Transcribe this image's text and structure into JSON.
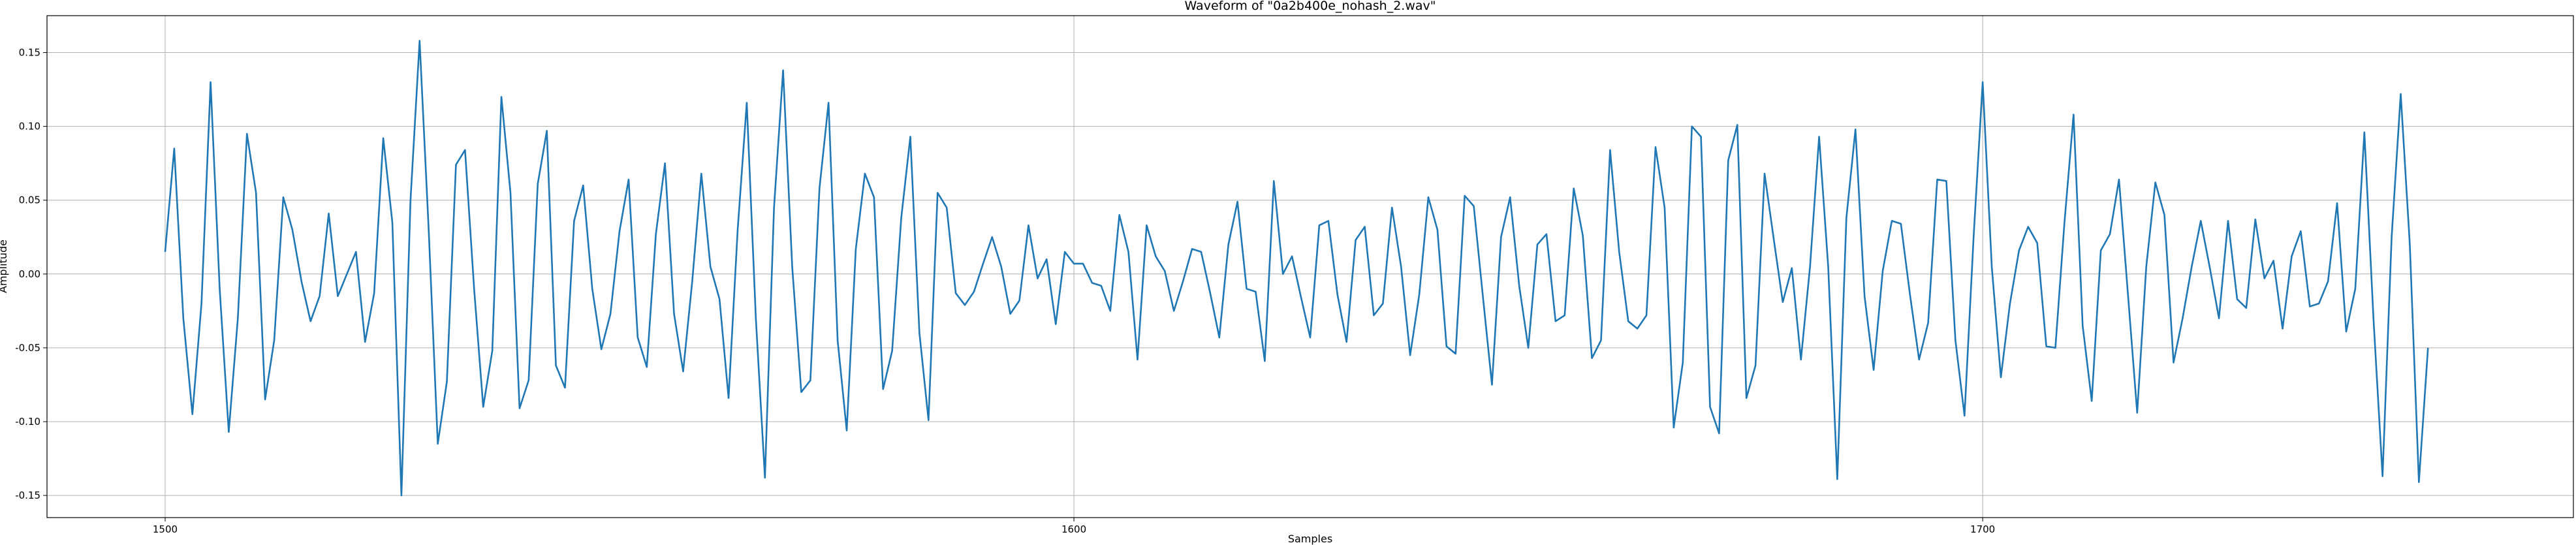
{
  "chart_data": {
    "type": "line",
    "title": "Waveform of \"0a2b400e_nohash_2.wav\"",
    "xlabel": "Samples",
    "ylabel": "Amplitude",
    "xlim": [
      1487,
      1765
    ],
    "ylim": [
      -0.165,
      0.175
    ],
    "xticks": [
      1500,
      1600,
      1700
    ],
    "yticks": [
      -0.15,
      -0.1,
      -0.05,
      0.0,
      0.05,
      0.1,
      0.15
    ],
    "grid": true,
    "series": [
      {
        "color": "#1f77b4",
        "x_start": 1500,
        "x_step": 1,
        "values": [
          0.015,
          0.085,
          -0.03,
          -0.095,
          -0.02,
          0.13,
          -0.01,
          -0.107,
          -0.03,
          0.095,
          0.055,
          -0.085,
          -0.045,
          0.052,
          0.03,
          -0.005,
          -0.032,
          -0.015,
          0.041,
          -0.015,
          0.0,
          0.015,
          -0.046,
          -0.013,
          0.092,
          0.035,
          -0.15,
          0.05,
          0.158,
          0.03,
          -0.115,
          -0.073,
          0.074,
          0.084,
          -0.01,
          -0.09,
          -0.052,
          0.12,
          0.055,
          -0.091,
          -0.072,
          0.061,
          0.097,
          -0.062,
          -0.077,
          0.036,
          0.06,
          -0.01,
          -0.051,
          -0.027,
          0.029,
          0.064,
          -0.043,
          -0.063,
          0.027,
          0.075,
          -0.027,
          -0.066,
          -0.005,
          0.068,
          0.005,
          -0.017,
          -0.084,
          0.03,
          0.116,
          -0.03,
          -0.138,
          0.045,
          0.138,
          0.005,
          -0.08,
          -0.072,
          0.058,
          0.116,
          -0.045,
          -0.106,
          0.017,
          0.068,
          0.052,
          -0.078,
          -0.052,
          0.038,
          0.093,
          -0.04,
          -0.099,
          0.055,
          0.045,
          -0.013,
          -0.021,
          -0.012,
          0.007,
          0.025,
          0.005,
          -0.027,
          -0.018,
          0.033,
          -0.003,
          0.01,
          -0.034,
          0.015,
          0.007,
          0.007,
          -0.006,
          -0.008,
          -0.025,
          0.04,
          0.015,
          -0.058,
          0.033,
          0.012,
          0.002,
          -0.025,
          -0.005,
          0.017,
          0.015,
          -0.013,
          -0.043,
          0.02,
          0.049,
          -0.01,
          -0.012,
          -0.059,
          0.063,
          0.0,
          0.012,
          -0.016,
          -0.043,
          0.033,
          0.036,
          -0.014,
          -0.046,
          0.023,
          0.032,
          -0.028,
          -0.02,
          0.045,
          0.005,
          -0.055,
          -0.014,
          0.052,
          0.03,
          -0.049,
          -0.054,
          0.053,
          0.046,
          -0.015,
          -0.075,
          0.025,
          0.052,
          -0.008,
          -0.05,
          0.02,
          0.027,
          -0.032,
          -0.028,
          0.058,
          0.026,
          -0.057,
          -0.045,
          0.084,
          0.015,
          -0.032,
          -0.037,
          -0.028,
          0.086,
          0.045,
          -0.104,
          -0.06,
          0.1,
          0.093,
          -0.09,
          -0.108,
          0.077,
          0.101,
          -0.084,
          -0.062,
          0.068,
          0.024,
          -0.019,
          0.004,
          -0.058,
          0.005,
          0.093,
          0.005,
          -0.139,
          0.038,
          0.098,
          -0.015,
          -0.065,
          0.002,
          0.036,
          0.034,
          -0.014,
          -0.058,
          -0.033,
          0.064,
          0.063,
          -0.045,
          -0.096,
          0.025,
          0.13,
          0.005,
          -0.07,
          -0.02,
          0.016,
          0.032,
          0.021,
          -0.049,
          -0.05,
          0.035,
          0.108,
          -0.035,
          -0.086,
          0.016,
          0.027,
          0.064,
          -0.015,
          -0.094,
          0.005,
          0.062,
          0.04,
          -0.06,
          -0.03,
          0.005,
          0.036,
          0.004,
          -0.03,
          0.036,
          -0.017,
          -0.023,
          0.037,
          -0.003,
          0.009,
          -0.037,
          0.012,
          0.029,
          -0.022,
          -0.02,
          -0.005,
          0.048,
          -0.039,
          -0.01,
          0.096,
          -0.03,
          -0.137,
          0.025,
          0.122,
          0.02,
          -0.141,
          -0.05
        ]
      }
    ]
  }
}
